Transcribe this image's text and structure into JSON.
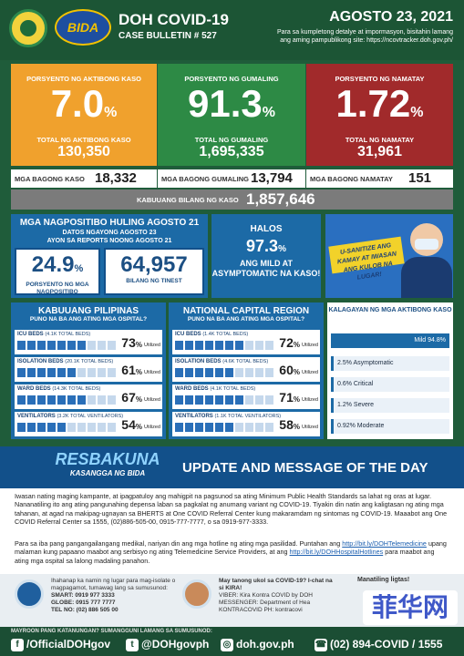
{
  "header": {
    "title": "DOH COVID-19",
    "bulletin": "CASE BULLETIN # 527",
    "date": "AGOSTO 23, 2021",
    "more_info": "Para sa kumpletong detalye at impormasyon, bisitahin lamang ang aming pampublikong site: https://ncovtracker.doh.gov.ph/",
    "logo_text": "BIDA"
  },
  "stats": {
    "active": {
      "label": "PORSYENTO NG AKTIBONG KASO",
      "pct": "7.0",
      "sub": "TOTAL NG AKTIBONG KASO",
      "total": "130,350"
    },
    "recovered": {
      "label": "PORSYENTO NG GUMALING",
      "pct": "91.3",
      "sub": "TOTAL NG GUMALING",
      "total": "1,695,335"
    },
    "died": {
      "label": "PORSYENTO NG NAMATAY",
      "pct": "1.72",
      "sub": "TOTAL NG NAMATAY",
      "total": "31,961"
    },
    "pct_sign": "%"
  },
  "new": {
    "cases_label": "MGA BAGONG KASO",
    "cases": "18,332",
    "recovered_label": "MGA BAGONG GUMALING",
    "recovered": "13,794",
    "died_label": "MGA BAGONG NAMATAY",
    "died": "151"
  },
  "total": {
    "label": "KABUUANG BILANG NG KASO",
    "value": "1,857,646"
  },
  "positivity": {
    "title": "MGA NAGPOSITIBO HULING AGOSTO 21",
    "sub1": "DATOS NGAYONG AGOSTO 23",
    "sub2": "AYON SA REPORTS NOONG AGOSTO 21",
    "rate": "24.9",
    "rate_cap": "PORSYENTO NG MGA NAGPOSITIBO",
    "tested": "64,957",
    "tested_cap": "BILANG NG TINEST"
  },
  "mild": {
    "halos": "HALOS",
    "pct": "97.3",
    "text": "ANG MILD AT ASYMPTOMATIC NA KASO!"
  },
  "sanitize": {
    "banner": "U-SANITIZE ANG KAMAY AT IWASAN ANG KULOB NA LUGAR!"
  },
  "utilization": {
    "utilized": "Utilized",
    "ph": {
      "title": "KABUUANG PILIPINAS",
      "sub": "PUNO NA BA ANG ATING MGA OSPITAL?",
      "rows": [
        {
          "label": "ICU BEDS",
          "total": "(4.1K TOTAL BEDS)",
          "pct": "73"
        },
        {
          "label": "ISOLATION BEDS",
          "total": "(20.1K TOTAL BEDS)",
          "pct": "61"
        },
        {
          "label": "WARD BEDS",
          "total": "(14.3K TOTAL BEDS)",
          "pct": "67"
        },
        {
          "label": "VENTILATORS",
          "total": "(3.2K TOTAL VENTILATORS)",
          "pct": "54"
        }
      ]
    },
    "ncr": {
      "title": "NATIONAL CAPITAL REGION",
      "sub": "PUNO NA BA ANG ATING MGA OSPITAL?",
      "rows": [
        {
          "label": "ICU BEDS",
          "total": "(1.4K TOTAL BEDS)",
          "pct": "72"
        },
        {
          "label": "ISOLATION BEDS",
          "total": "(4.6K TOTAL BEDS)",
          "pct": "60"
        },
        {
          "label": "WARD BEDS",
          "total": "(4.1K TOTAL BEDS)",
          "pct": "71"
        },
        {
          "label": "VENTILATORS",
          "total": "(1.1K TOTAL VENTILATORS)",
          "pct": "58"
        }
      ]
    }
  },
  "severity": {
    "title": "KALAGAYAN NG MGA AKTIBONG KASO",
    "mild": "Mild 94.8%",
    "asymptomatic": "2.5% Asymptomatic",
    "critical": "0.6% Critical",
    "severe": "1.2% Severe",
    "moderate": "0.92% Moderate"
  },
  "update": {
    "resbakuna": "RESBAKUNA",
    "resbakuna_sub": "KASANGGA NG BIDA",
    "title": "UPDATE AND MESSAGE OF THE DAY",
    "msg1": "Iwasan nating maging kampante, at ipagpatuloy ang mahigpit na pagsunod sa ating Minimum Public Health Standards sa lahat ng oras at lugar. Nananatiling ito ang ating pangunahing depensa laban sa pagkalat ng anumang variant ng COVID-19. Tiyakin din natin ang kaligtasan ng ating mga tahanan, at agad na makipag-ugnayan sa BHERTS at One COVID Referral Center kung makaramdam ng sintomas ng COVID-19. Maaabot ang One COVID Referral Center sa 1555, (02)886-505-00, 0915-777-7777, o sa 0919-977-3333.",
    "msg2_a": "Para sa iba pang pangangailangang medikal, nariyan din ang mga hotline ng ating mga pasilidad. Puntahan ang",
    "link1": "http://bit.ly/DOHTelemedicine",
    "msg2_b": "upang malaman kung papaano maabot ang serbisyo ng ating Telemedicine Service Providers, at ang",
    "link2": "http://bit.ly/DOHHospitalHotlines",
    "msg2_c": "para maabot ang ating mga ospital sa lalong madaling panahon."
  },
  "hotlines": {
    "left_intro": "Ihahanap ka namin ng lugar para mag-isolate o magpagamot, tumawag lang sa sumusunod:",
    "smart": "SMART: 0919 977 3333",
    "globe": "GLOBE: 0915 777 7777",
    "tel": "TEL NO: (02) 886 505 00",
    "mid_intro": "May tanong ukol sa COVID-19? I-chat na si KIRA!",
    "viber": "VIBER: Kira Kontra COVID by DOH",
    "messenger": "MESSENGER: Department of Hea",
    "kontracovid": "KONTRACOVID PH: kontracovi",
    "stay_safe": "Manatiling ligtas!",
    "watermark": "菲华网"
  },
  "footer": {
    "question": "MAYROON PANG KATANUNGAN? SUMANGGUNI LAMANG SA SUMUSUNOD:",
    "facebook": "/OfficialDOHgov",
    "twitter": "@DOHgovph",
    "website": "doh.gov.ph",
    "phone": "(02) 894-COVID / 1555"
  }
}
